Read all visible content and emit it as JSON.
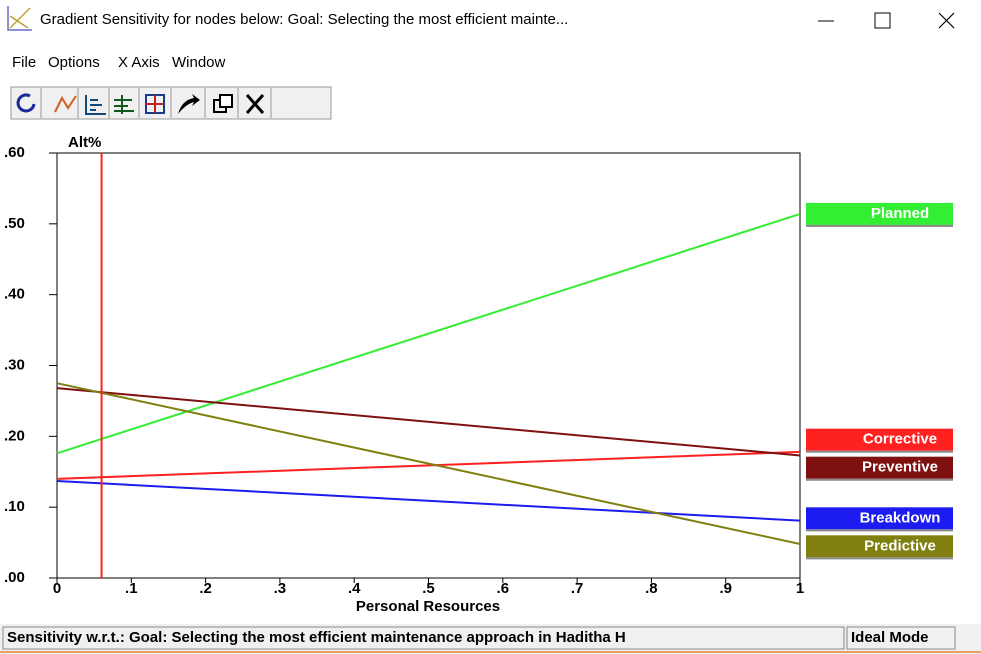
{
  "window": {
    "title": "Gradient Sensitivity for nodes below: Goal: Selecting the most efficient mainte..."
  },
  "menu": [
    "File",
    "Options",
    "X Axis",
    "Window"
  ],
  "chart_data": {
    "type": "line",
    "y_label": "Alt%",
    "x_label": "Personal Resources",
    "x": [
      0,
      1
    ],
    "xlim": [
      0,
      1
    ],
    "ylim": [
      0,
      0.6
    ],
    "xticks": [
      0,
      {
        "value": 0.1,
        "label": ".1"
      },
      {
        "value": 0.2,
        "label": ".2"
      },
      {
        "value": 0.3,
        "label": ".3"
      },
      {
        "value": 0.4,
        "label": ".4"
      },
      {
        "value": 0.5,
        "label": ".5"
      },
      {
        "value": 0.6,
        "label": ".6"
      },
      {
        "value": 0.7,
        "label": ".7"
      },
      {
        "value": 0.8,
        "label": ".8"
      },
      {
        "value": 0.9,
        "label": ".9"
      },
      1
    ],
    "yticks": [
      {
        "value": 0,
        "label": ".00"
      },
      {
        "value": 0.1,
        "label": ".10"
      },
      {
        "value": 0.2,
        "label": ".20"
      },
      {
        "value": 0.3,
        "label": ".30"
      },
      {
        "value": 0.4,
        "label": ".40"
      },
      {
        "value": 0.5,
        "label": ".50"
      },
      {
        "value": 0.6,
        "label": ".60"
      }
    ],
    "marker_x": 0.06,
    "marker_color": "#ff2020",
    "series": [
      {
        "name": "Planned",
        "color": "#33ee33",
        "label_color": "#000000",
        "values": [
          0.176,
          0.514
        ]
      },
      {
        "name": "Corrective",
        "color": "#ff2020",
        "label_color": "#ffffff",
        "values": [
          0.14,
          0.178
        ]
      },
      {
        "name": "Preventive",
        "color": "#7f1010",
        "label_color": "#ffffff",
        "values": [
          0.268,
          0.173
        ]
      },
      {
        "name": "Breakdown",
        "color": "#1c1cf0",
        "label_color": "#ffffff",
        "values": [
          0.137,
          0.081
        ]
      },
      {
        "name": "Predictive",
        "color": "#808010",
        "label_color": "#ffffff",
        "values": [
          0.275,
          0.048
        ]
      }
    ]
  },
  "status_bar": [
    "Sensitivity w.r.t.: Goal: Selecting the most efficient maintenance approach in Haditha H",
    "Ideal Mode"
  ]
}
